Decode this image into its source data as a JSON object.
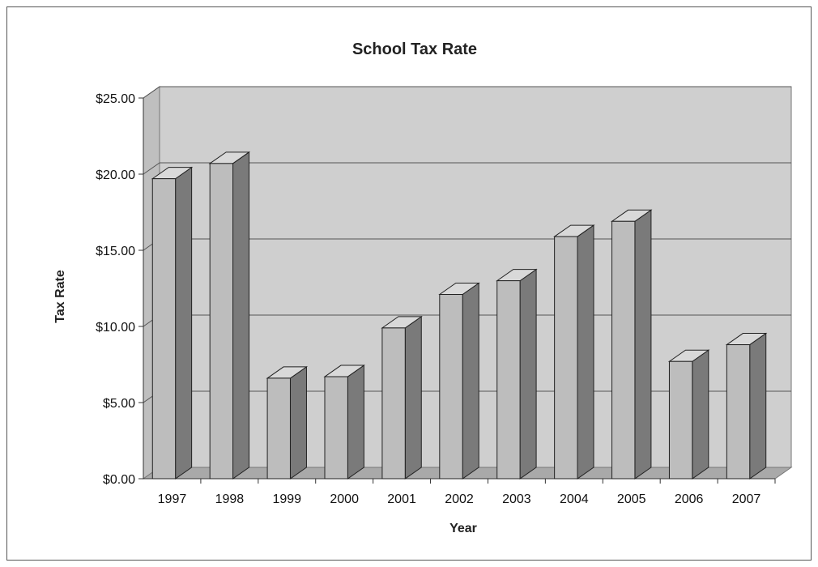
{
  "chart_data": {
    "type": "bar",
    "title": "School Tax Rate",
    "xlabel": "Year",
    "ylabel": "Tax Rate",
    "categories": [
      "1997",
      "1998",
      "1999",
      "2000",
      "2001",
      "2002",
      "2003",
      "2004",
      "2005",
      "2006",
      "2007"
    ],
    "values": [
      19.7,
      20.7,
      6.6,
      6.7,
      9.9,
      12.1,
      13.0,
      15.9,
      16.9,
      7.7,
      8.8
    ],
    "ylim": [
      0,
      25
    ],
    "yticks": [
      0,
      5,
      10,
      15,
      20,
      25
    ],
    "ytick_labels": [
      "$0.00",
      "$5.00",
      "$10.00",
      "$15.00",
      "$20.00",
      "$25.00"
    ],
    "grid": true,
    "legend": "none",
    "style": "3d-column",
    "colors": {
      "bar_front": "#bdbdbd",
      "bar_side": "#7a7a7a",
      "bar_top": "#d9d9d9",
      "wall": "#cfcfcf",
      "wall_side": "#bfbfbf",
      "floor": "#a9a9a9",
      "gridline": "#555555"
    }
  }
}
